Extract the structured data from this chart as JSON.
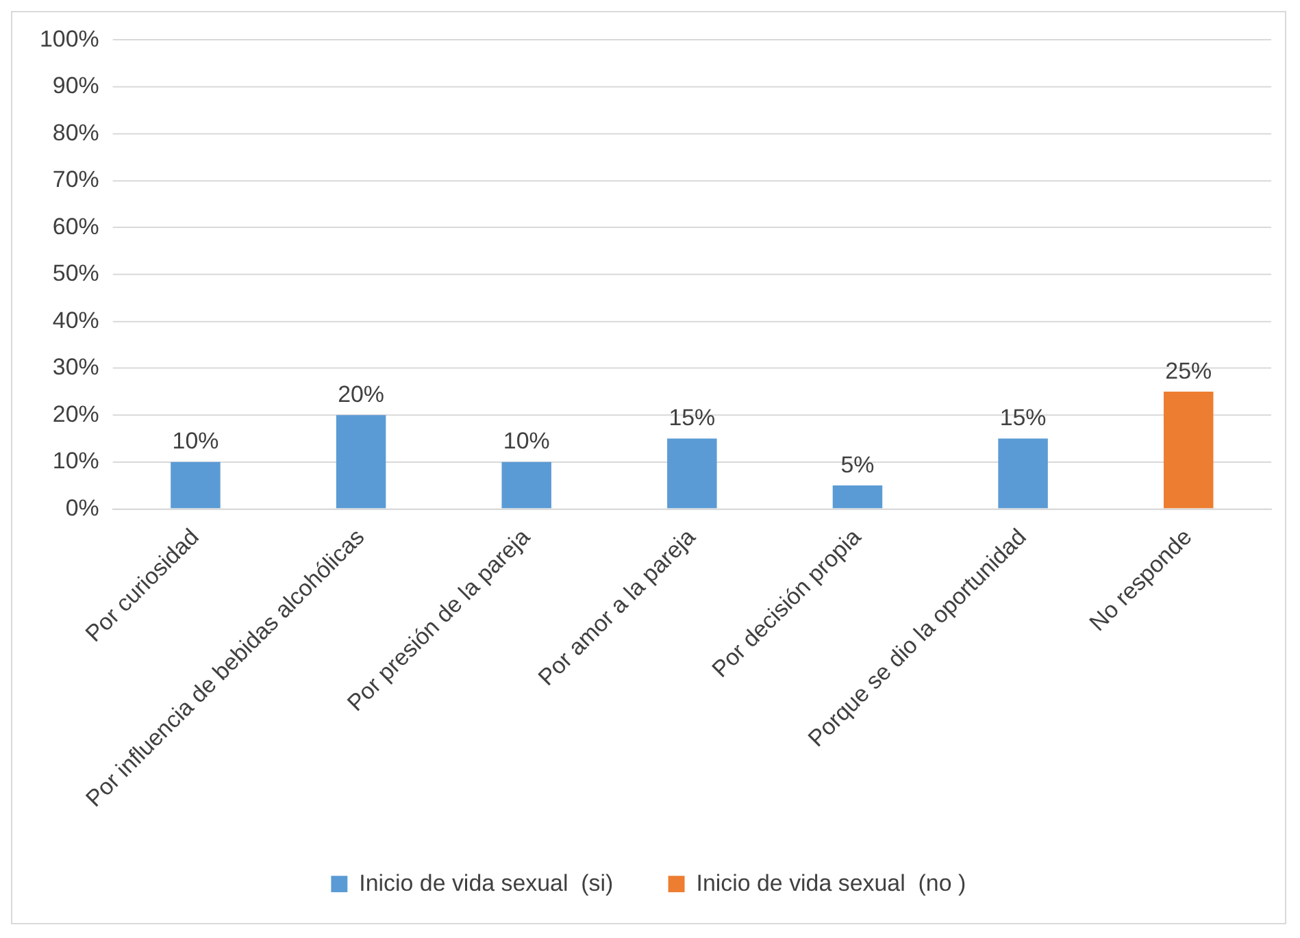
{
  "chart_data": {
    "type": "bar",
    "categories": [
      "Por curiosidad",
      "Por influencia de bebidas alcohólicas",
      "Por presión de la pareja",
      "Por amor a la pareja",
      "Por decisión propia",
      "Porque se dio la oportunidad",
      "No responde"
    ],
    "series": [
      {
        "name": "Inicio de vida sexual  (si)",
        "color": "#5b9bd5",
        "values": [
          10,
          20,
          10,
          15,
          5,
          15,
          null
        ],
        "value_labels": [
          "10%",
          "20%",
          "10%",
          "15%",
          "5%",
          "15%",
          null
        ]
      },
      {
        "name": "Inicio de vida sexual  (no )",
        "color": "#ed7d31",
        "values": [
          null,
          null,
          null,
          null,
          null,
          null,
          25
        ],
        "value_labels": [
          null,
          null,
          null,
          null,
          null,
          null,
          "25%"
        ]
      }
    ],
    "ylim": [
      0,
      100
    ],
    "yticks": [
      {
        "value": 0,
        "label": "0%"
      },
      {
        "value": 10,
        "label": "10%"
      },
      {
        "value": 20,
        "label": "20%"
      },
      {
        "value": 30,
        "label": "30%"
      },
      {
        "value": 40,
        "label": "40%"
      },
      {
        "value": 50,
        "label": "50%"
      },
      {
        "value": 60,
        "label": "60%"
      },
      {
        "value": 70,
        "label": "70%"
      },
      {
        "value": 80,
        "label": "80%"
      },
      {
        "value": 90,
        "label": "90%"
      },
      {
        "value": 100,
        "label": "100%"
      }
    ],
    "grid": "y",
    "legend": "bottom"
  }
}
